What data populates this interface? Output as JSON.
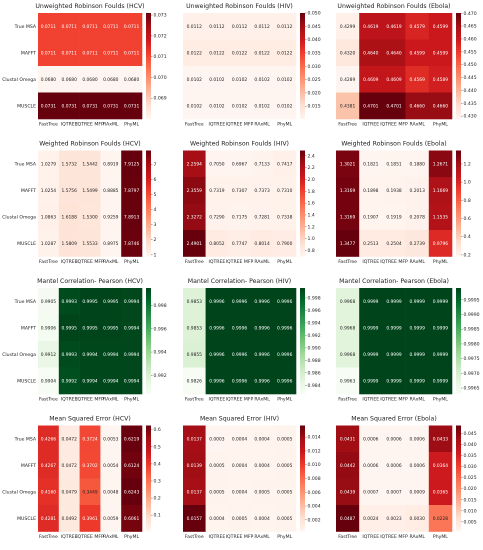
{
  "chart_data": [
    {
      "type": "heatmap",
      "title": "Unweighted Robinson Foulds (HCV)",
      "colormap": "Reds",
      "rows": [
        "True MSA",
        "MAFFT",
        "Clustal Omega",
        "MUSCLE"
      ],
      "columns": [
        "FastTree",
        "IQTREE",
        "IQTREE MFP",
        "RAxML",
        "PhyML"
      ],
      "values": [
        [
          0.0711,
          0.0711,
          0.0711,
          0.0711,
          0.0711
        ],
        [
          0.0711,
          0.0711,
          0.0711,
          0.0711,
          0.0711
        ],
        [
          0.068,
          0.068,
          0.068,
          0.068,
          0.068
        ],
        [
          0.0731,
          0.0731,
          0.0731,
          0.0731,
          0.0731
        ]
      ],
      "value_labels": [
        [
          "0.0711",
          "0.0711",
          "0.0711",
          "0.0711",
          "0.0711"
        ],
        [
          "0.0711",
          "0.0711",
          "0.0711",
          "0.0711",
          "0.0711"
        ],
        [
          "0.0680",
          "0.0680",
          "0.0680",
          "0.0680",
          "0.0680"
        ],
        [
          "0.0731",
          "0.0731",
          "0.0731",
          "0.0731",
          "0.0731"
        ]
      ],
      "zlim": [
        0.068,
        0.0731
      ],
      "zticks": [
        0.069,
        {
          "value": 0.07,
          "label": "0.070"
        },
        0.071,
        0.072,
        0.073
      ]
    },
    {
      "type": "heatmap",
      "title": "Unweighted Robinson Foulds (HIV)",
      "colormap": "Reds",
      "columns": [
        "FastTree",
        "IQTREE",
        "IQTREE MFP",
        "RAxML",
        "PhyML"
      ],
      "values": [
        [
          0.0112,
          0.0112,
          0.0112,
          0.0112,
          0.0112
        ],
        [
          0.0122,
          0.0122,
          0.0122,
          0.0122,
          0.0122
        ],
        [
          0.0102,
          0.0102,
          0.0102,
          0.0102,
          0.0102
        ],
        [
          0.0102,
          0.0102,
          0.0102,
          0.0102,
          0.0102
        ]
      ],
      "value_labels": [
        [
          "0.0112",
          "0.0112",
          "0.0112",
          "0.0112",
          "0.0112"
        ],
        [
          "0.0122",
          "0.0122",
          "0.0122",
          "0.0122",
          "0.0122"
        ],
        [
          "0.0102",
          "0.0102",
          "0.0102",
          "0.0102",
          "0.0102"
        ],
        [
          "0.0102",
          "0.0102",
          "0.0102",
          "0.0102",
          "0.0102"
        ]
      ],
      "zlim": [
        0.0102,
        0.05
      ],
      "zticks": [
        0.015,
        {
          "value": 0.02,
          "label": "0.020"
        },
        0.025,
        {
          "value": 0.03,
          "label": "0.030"
        },
        0.035,
        {
          "value": 0.04,
          "label": "0.040"
        },
        0.045,
        {
          "value": 0.05,
          "label": "0.050"
        }
      ]
    },
    {
      "type": "heatmap",
      "title": "Unweighted Robinson Foulds (Ebola)",
      "colormap": "Reds",
      "columns": [
        "FastTree",
        "IQTREE",
        "IQTREE MFP",
        "RAxML",
        "PhyML"
      ],
      "values": [
        [
          0.4299,
          0.4619,
          0.4619,
          0.4579,
          0.4599
        ],
        [
          0.432,
          0.464,
          0.464,
          0.4599,
          0.4599
        ],
        [
          0.4289,
          0.4609,
          0.4609,
          0.4569,
          0.4589
        ],
        [
          0.4381,
          0.4701,
          0.4701,
          0.466,
          0.466
        ]
      ],
      "value_labels": [
        [
          "0.4299",
          "0.4619",
          "0.4619",
          "0.4579",
          "0.4599"
        ],
        [
          "0.4320",
          "0.4640",
          "0.4640",
          "0.4599",
          "0.4599"
        ],
        [
          "0.4289",
          "0.4609",
          "0.4609",
          "0.4569",
          "0.4589"
        ],
        [
          "0.4381",
          "0.4701",
          "0.4701",
          "0.4660",
          "0.4660"
        ]
      ],
      "zlim": [
        0.4289,
        0.4701
      ],
      "zticks": [
        {
          "value": 0.43,
          "label": "0.430"
        },
        0.435,
        {
          "value": 0.44,
          "label": "0.440"
        },
        0.445,
        {
          "value": 0.45,
          "label": "0.450"
        },
        0.455,
        {
          "value": 0.46,
          "label": "0.460"
        },
        0.465,
        {
          "value": 0.47,
          "label": "0.470"
        }
      ]
    },
    {
      "type": "heatmap",
      "title": "Weighted Robinson Foulds (HCV)",
      "colormap": "Reds",
      "rows": [
        "True MSA",
        "MAFFT",
        "Clustal Omega",
        "MUSCLE"
      ],
      "columns": [
        "FastTree",
        "IQTREE",
        "IQTREE MFP",
        "RAxML",
        "PhyML"
      ],
      "values": [
        [
          1.0279,
          1.5732,
          1.5442,
          0.8919,
          7.9125
        ],
        [
          1.0254,
          1.5756,
          1.5499,
          0.8885,
          7.8797
        ],
        [
          1.0863,
          1.6188,
          1.53,
          0.9259,
          7.8913
        ],
        [
          1.0287,
          1.5809,
          1.5533,
          0.8975,
          7.8746
        ]
      ],
      "value_labels": [
        [
          "1.0279",
          "1.5732",
          "1.5442",
          "0.8919",
          "7.9125"
        ],
        [
          "1.0254",
          "1.5756",
          "1.5499",
          "0.8885",
          "7.8797"
        ],
        [
          "1.0863",
          "1.6188",
          "1.5300",
          "0.9259",
          "7.8913"
        ],
        [
          "1.0287",
          "1.5809",
          "1.5533",
          "0.8975",
          "7.8746"
        ]
      ],
      "zlim": [
        0.8885,
        7.9125
      ],
      "zticks": [
        1,
        2,
        3,
        4,
        5,
        6,
        7
      ]
    },
    {
      "type": "heatmap",
      "title": "Weighted Robinson Foulds (HIV)",
      "colormap": "Reds",
      "columns": [
        "FastTree",
        "IQTREE",
        "IQTREE MFP",
        "RAxML",
        "PhyML"
      ],
      "values": [
        [
          2.2594,
          0.705,
          0.6967,
          0.7133,
          0.7417
        ],
        [
          2.3559,
          0.7319,
          0.7307,
          0.7373,
          0.731
        ],
        [
          2.3272,
          0.729,
          0.7175,
          0.7281,
          0.7338
        ],
        [
          2.4901,
          0.8052,
          0.7747,
          0.8014,
          0.79
        ]
      ],
      "value_labels": [
        [
          "2.2594",
          "0.7050",
          "0.6967",
          "0.7133",
          "0.7417"
        ],
        [
          "2.3559",
          "0.7319",
          "0.7307",
          "0.7373",
          "0.7310"
        ],
        [
          "2.3272",
          "0.7290",
          "0.7175",
          "0.7281",
          "0.7338"
        ],
        [
          "2.4901",
          "0.8052",
          "0.7747",
          "0.8014",
          "0.7900"
        ]
      ],
      "zlim": [
        0.6967,
        2.4901
      ],
      "zticks": [
        0.8,
        {
          "value": 1,
          "label": "1.0"
        },
        1.2,
        1.4,
        1.6,
        1.8,
        {
          "value": 2,
          "label": "2.0"
        },
        2.2,
        2.4
      ]
    },
    {
      "type": "heatmap",
      "title": "Weighted Robinson Foulds (Ebola)",
      "colormap": "Reds",
      "columns": [
        "FastTree",
        "IQTREE",
        "IQTREE MFP",
        "RAxML",
        "PhyML"
      ],
      "values": [
        [
          1.3021,
          0.1821,
          0.1851,
          0.188,
          1.2671
        ],
        [
          1.3169,
          0.1898,
          0.1938,
          0.2013,
          1.1669
        ],
        [
          1.3169,
          0.1907,
          0.1919,
          0.2078,
          1.1535
        ],
        [
          1.3477,
          0.2513,
          0.2504,
          0.2739,
          0.9796
        ]
      ],
      "value_labels": [
        [
          "1.3021",
          "0.1821",
          "0.1851",
          "0.1880",
          "1.2671"
        ],
        [
          "1.3169",
          "0.1898",
          "0.1938",
          "0.2013",
          "1.1669"
        ],
        [
          "1.3169",
          "0.1907",
          "0.1919",
          "0.2078",
          "1.1535"
        ],
        [
          "1.3477",
          "0.2513",
          "0.2504",
          "0.2739",
          "0.9796"
        ]
      ],
      "zlim": [
        0.1821,
        1.3477
      ],
      "zticks": [
        0.2,
        0.4,
        0.6,
        0.8,
        {
          "value": 1,
          "label": "1.0"
        },
        1.2
      ]
    },
    {
      "type": "heatmap",
      "title": "Mantel Correlation- Pearson (HCV)",
      "colormap": "Greens",
      "rows": [
        "True MSA",
        "MAFFT",
        "Clustal Omega",
        "MUSCLE"
      ],
      "columns": [
        "FastTree",
        "IQTREE",
        "IQTREE MFP",
        "RAxML",
        "PhyML"
      ],
      "values": [
        [
          0.9905,
          0.9993,
          0.9995,
          0.9995,
          0.9994
        ],
        [
          0.9906,
          0.9995,
          0.9995,
          0.9995,
          0.9994
        ],
        [
          0.9912,
          0.9993,
          0.9994,
          0.9994,
          0.9994
        ],
        [
          0.9904,
          0.9992,
          0.9994,
          0.9994,
          0.9994
        ]
      ],
      "value_labels": [
        [
          "0.9905",
          "0.9993",
          "0.9995",
          "0.9995",
          "0.9994"
        ],
        [
          "0.9906",
          "0.9995",
          "0.9995",
          "0.9995",
          "0.9994"
        ],
        [
          "0.9912",
          "0.9993",
          "0.9994",
          "0.9994",
          "0.9994"
        ],
        [
          "0.9904",
          "0.9992",
          "0.9994",
          "0.9994",
          "0.9994"
        ]
      ],
      "zlim": [
        0.9904,
        0.9995
      ],
      "zticks": [
        0.992,
        0.994,
        0.996,
        0.998
      ]
    },
    {
      "type": "heatmap",
      "title": "Mantel Correlation- Pearson (HIV)",
      "colormap": "Greens",
      "columns": [
        "FastTree",
        "IQTREE",
        "IQTREE MFP",
        "RAxML",
        "PhyML"
      ],
      "values": [
        [
          0.9853,
          0.9996,
          0.9996,
          0.9996,
          0.9996
        ],
        [
          0.9853,
          0.9996,
          0.9996,
          0.9996,
          0.9996
        ],
        [
          0.9855,
          0.9996,
          0.9996,
          0.9996,
          0.9996
        ],
        [
          0.9826,
          0.9996,
          0.9996,
          0.9996,
          0.9996
        ]
      ],
      "value_labels": [
        [
          "0.9853",
          "0.9996",
          "0.9996",
          "0.9996",
          "0.9996"
        ],
        [
          "0.9853",
          "0.9996",
          "0.9996",
          "0.9996",
          "0.9996"
        ],
        [
          "0.9855",
          "0.9996",
          "0.9996",
          "0.9996",
          "0.9996"
        ],
        [
          "0.9826",
          "0.9996",
          "0.9996",
          "0.9996",
          "0.9996"
        ]
      ],
      "zlim": [
        0.9826,
        0.9996
      ],
      "zticks": [
        0.984,
        0.986,
        0.988,
        {
          "value": 0.99,
          "label": "0.990"
        },
        0.992,
        0.994,
        0.996,
        0.998
      ]
    },
    {
      "type": "heatmap",
      "title": "Mantel Correlation- Pearson (Ebola)",
      "colormap": "Greens",
      "columns": [
        "FastTree",
        "IQTREE",
        "IQTREE MFP",
        "RAxML",
        "PhyML"
      ],
      "values": [
        [
          0.9968,
          0.9999,
          0.9999,
          0.9999,
          0.9999
        ],
        [
          0.9968,
          0.9999,
          0.9999,
          0.9999,
          0.9999
        ],
        [
          0.9968,
          0.9999,
          0.9999,
          0.9999,
          0.9999
        ],
        [
          0.9963,
          0.9999,
          0.9999,
          0.9999,
          0.9999
        ]
      ],
      "value_labels": [
        [
          "0.9968",
          "0.9999",
          "0.9999",
          "0.9999",
          "0.9999"
        ],
        [
          "0.9968",
          "0.9999",
          "0.9999",
          "0.9999",
          "0.9999"
        ],
        [
          "0.9968",
          "0.9999",
          "0.9999",
          "0.9999",
          "0.9999"
        ],
        [
          "0.9963",
          "0.9999",
          "0.9999",
          "0.9999",
          "0.9999"
        ]
      ],
      "zlim": [
        0.9963,
        0.9999
      ],
      "zticks": [
        0.9965,
        {
          "value": 0.997,
          "label": "0.9970"
        },
        0.9975,
        {
          "value": 0.998,
          "label": "0.9980"
        },
        0.9985,
        {
          "value": 0.999,
          "label": "0.9990"
        },
        0.9995
      ]
    },
    {
      "type": "heatmap",
      "title": "Mean Squared Error (HCV)",
      "colormap": "Reds",
      "rows": [
        "True MSA",
        "MAFFT",
        "Clustal Omega",
        "MUSCLE"
      ],
      "columns": [
        "FastTree",
        "IQTREE",
        "IQTREE MFP",
        "RAxML",
        "PhyML"
      ],
      "values": [
        [
          0.4266,
          0.0472,
          0.3724,
          0.0053,
          0.6219
        ],
        [
          0.4267,
          0.0472,
          0.3702,
          0.0054,
          0.6124
        ],
        [
          0.416,
          0.0479,
          0.3449,
          0.0048,
          0.6243
        ],
        [
          0.4281,
          0.0492,
          0.3961,
          0.0059,
          0.6061
        ]
      ],
      "value_labels": [
        [
          "0.4266",
          "0.0472",
          "0.3724",
          "0.0053",
          "0.6219"
        ],
        [
          "0.4267",
          "0.0472",
          "0.3702",
          "0.0054",
          "0.6124"
        ],
        [
          "0.4160",
          "0.0479",
          "0.3449",
          "0.0048",
          "0.6243"
        ],
        [
          "0.4281",
          "0.0492",
          "0.3961",
          "0.0059",
          "0.6061"
        ]
      ],
      "zlim": [
        0.0048,
        0.6243
      ],
      "zticks": [
        0.1,
        0.2,
        0.3,
        0.4,
        0.5,
        0.6
      ]
    },
    {
      "type": "heatmap",
      "title": "Mean Squared Error (HIV)",
      "colormap": "Reds",
      "columns": [
        "FastTree",
        "IQTREE",
        "IQTREE MFP",
        "RAxML",
        "PhyML"
      ],
      "values": [
        [
          0.0137,
          0.0003,
          0.0004,
          0.0004,
          0.0005
        ],
        [
          0.0139,
          0.0005,
          0.0004,
          0.0004,
          0.0005
        ],
        [
          0.0137,
          0.0005,
          0.0004,
          0.0005,
          0.0005
        ],
        [
          0.0157,
          0.0004,
          0.0005,
          0.0004,
          0.0005
        ]
      ],
      "value_labels": [
        [
          "0.0137",
          "0.0003",
          "0.0004",
          "0.0004",
          "0.0005"
        ],
        [
          "0.0139",
          "0.0005",
          "0.0004",
          "0.0004",
          "0.0005"
        ],
        [
          "0.0137",
          "0.0005",
          "0.0004",
          "0.0005",
          "0.0005"
        ],
        [
          "0.0157",
          "0.0004",
          "0.0005",
          "0.0004",
          "0.0005"
        ]
      ],
      "zlim": [
        0.0003,
        0.0157
      ],
      "zticks": [
        0.002,
        0.004,
        0.006,
        0.008,
        {
          "value": 0.01,
          "label": "0.010"
        },
        0.012,
        0.014
      ]
    },
    {
      "type": "heatmap",
      "title": "Mean Squared Error (Ebola)",
      "colormap": "Reds",
      "columns": [
        "FastTree",
        "IQTREE",
        "IQTREE MFP",
        "RAxML",
        "PhyML"
      ],
      "values": [
        [
          0.0431,
          0.0006,
          0.0006,
          0.0006,
          0.0433
        ],
        [
          0.0442,
          0.0006,
          0.0006,
          0.0006,
          0.0364
        ],
        [
          0.0439,
          0.0007,
          0.0007,
          0.0009,
          0.0365
        ],
        [
          0.0487,
          0.0024,
          0.0023,
          0.003,
          0.0228
        ]
      ],
      "value_labels": [
        [
          "0.0431",
          "0.0006",
          "0.0006",
          "0.0006",
          "0.0433"
        ],
        [
          "0.0442",
          "0.0006",
          "0.0006",
          "0.0006",
          "0.0364"
        ],
        [
          "0.0439",
          "0.0007",
          "0.0007",
          "0.0009",
          "0.0365"
        ],
        [
          "0.0487",
          "0.0024",
          "0.0023",
          "0.0030",
          "0.0228"
        ]
      ],
      "zlim": [
        0.0006,
        0.0487
      ],
      "zticks": [
        0.005,
        {
          "value": 0.01,
          "label": "0.010"
        },
        0.015,
        {
          "value": 0.02,
          "label": "0.020"
        },
        0.025,
        {
          "value": 0.03,
          "label": "0.030"
        },
        0.035,
        {
          "value": 0.04,
          "label": "0.040"
        },
        0.045
      ]
    }
  ]
}
